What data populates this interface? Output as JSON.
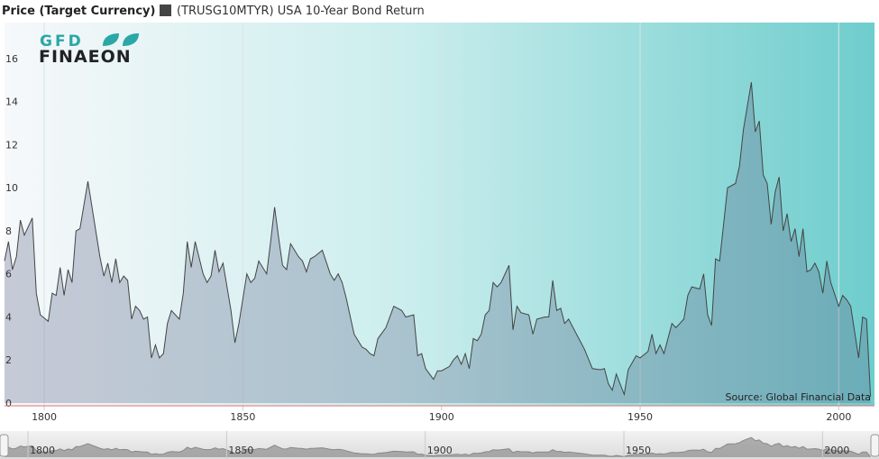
{
  "chart_data": {
    "type": "area",
    "title": "Price (Target Currency)",
    "logo": {
      "top": "GFD",
      "bottom": "FINAEON"
    },
    "source": "Source: Global Financial Data",
    "xlim": [
      1790,
      2009
    ],
    "ylim": [
      0,
      17.8
    ],
    "xticks": [
      1800,
      1850,
      1900,
      1950,
      2000
    ],
    "yticks": [
      0,
      2,
      4,
      6,
      8,
      10,
      12,
      14,
      16
    ],
    "grid": true,
    "series": [
      {
        "name": "(TRUSG10MTYR) USA 10-Year Bond Return",
        "color": "#444444",
        "x": [
          1790,
          1791,
          1792,
          1793,
          1794,
          1795,
          1797,
          1798,
          1799,
          1801,
          1802,
          1803,
          1804,
          1805,
          1806,
          1807,
          1808,
          1809,
          1811,
          1814,
          1815,
          1816,
          1817,
          1818,
          1819,
          1820,
          1821,
          1822,
          1823,
          1824,
          1825,
          1826,
          1827,
          1828,
          1829,
          1830,
          1831,
          1832,
          1834,
          1835,
          1836,
          1837,
          1838,
          1840,
          1841,
          1842,
          1843,
          1844,
          1845,
          1847,
          1848,
          1849,
          1851,
          1852,
          1853,
          1854,
          1856,
          1857,
          1858,
          1859,
          1860,
          1861,
          1862,
          1864,
          1865,
          1866,
          1867,
          1868,
          1870,
          1872,
          1873,
          1874,
          1875,
          1876,
          1878,
          1880,
          1881,
          1882,
          1883,
          1884,
          1886,
          1888,
          1890,
          1891,
          1893,
          1894,
          1895,
          1896,
          1897,
          1898,
          1899,
          1900,
          1902,
          1903,
          1904,
          1905,
          1906,
          1907,
          1908,
          1909,
          1910,
          1911,
          1912,
          1913,
          1914,
          1915,
          1917,
          1918,
          1919,
          1920,
          1922,
          1923,
          1924,
          1926,
          1927,
          1928,
          1929,
          1930,
          1931,
          1932,
          1934,
          1936,
          1938,
          1940,
          1941,
          1942,
          1943,
          1944,
          1946,
          1947,
          1949,
          1950,
          1952,
          1953,
          1954,
          1955,
          1956,
          1958,
          1959,
          1960,
          1961,
          1962,
          1963,
          1965,
          1966,
          1967,
          1968,
          1969,
          1970,
          1972,
          1974,
          1975,
          1976,
          1978,
          1979,
          1980,
          1981,
          1982,
          1983,
          1984,
          1985,
          1986,
          1987,
          1988,
          1989,
          1990,
          1991,
          1992,
          1993,
          1994,
          1995,
          1996,
          1997,
          1998,
          2000,
          2001,
          2002,
          2003,
          2005,
          2006,
          2007,
          2008
        ],
        "values": [
          6.6,
          7.5,
          6.2,
          6.8,
          8.5,
          7.8,
          8.6,
          5.1,
          4.1,
          3.8,
          5.1,
          5.0,
          6.3,
          5.0,
          6.2,
          5.6,
          8.0,
          8.1,
          10.3,
          6.8,
          5.9,
          6.5,
          5.6,
          6.7,
          5.6,
          5.9,
          5.7,
          3.9,
          4.5,
          4.3,
          3.9,
          4.0,
          2.1,
          2.7,
          2.1,
          2.3,
          3.7,
          4.3,
          3.9,
          5.1,
          7.5,
          6.3,
          7.5,
          6.0,
          5.6,
          5.9,
          7.1,
          6.1,
          6.5,
          4.3,
          2.8,
          3.7,
          6.0,
          5.6,
          5.8,
          6.6,
          6.0,
          7.5,
          9.1,
          7.7,
          6.4,
          6.2,
          7.4,
          6.8,
          6.6,
          6.1,
          6.7,
          6.8,
          7.1,
          6.0,
          5.7,
          6.0,
          5.6,
          4.9,
          3.2,
          2.6,
          2.5,
          2.3,
          2.2,
          3.0,
          3.5,
          4.5,
          4.3,
          4.0,
          4.1,
          2.2,
          2.3,
          1.6,
          1.35,
          1.1,
          1.5,
          1.5,
          1.7,
          2.0,
          2.2,
          1.8,
          2.3,
          1.6,
          3.0,
          2.9,
          3.2,
          4.1,
          4.3,
          5.6,
          5.4,
          5.6,
          6.4,
          3.4,
          4.5,
          4.2,
          4.1,
          3.2,
          3.9,
          4.0,
          4.0,
          5.7,
          4.3,
          4.4,
          3.7,
          3.9,
          3.2,
          2.5,
          1.6,
          1.55,
          1.6,
          0.9,
          0.6,
          1.35,
          0.4,
          1.55,
          2.2,
          2.1,
          2.4,
          3.2,
          2.3,
          2.7,
          2.3,
          3.7,
          3.5,
          3.7,
          3.9,
          5.0,
          5.4,
          5.3,
          6.0,
          4.1,
          3.6,
          6.7,
          6.6,
          10.0,
          10.2,
          11.0,
          12.7,
          14.9,
          12.6,
          13.1,
          10.6,
          10.2,
          8.3,
          9.8,
          10.5,
          8.0,
          8.8,
          7.5,
          8.1,
          6.8,
          8.1,
          6.1,
          6.2,
          6.5,
          6.1,
          5.1,
          6.6,
          5.6,
          4.5,
          5.0,
          4.8,
          4.5,
          2.1,
          4.0,
          3.9,
          0.3
        ]
      }
    ]
  }
}
